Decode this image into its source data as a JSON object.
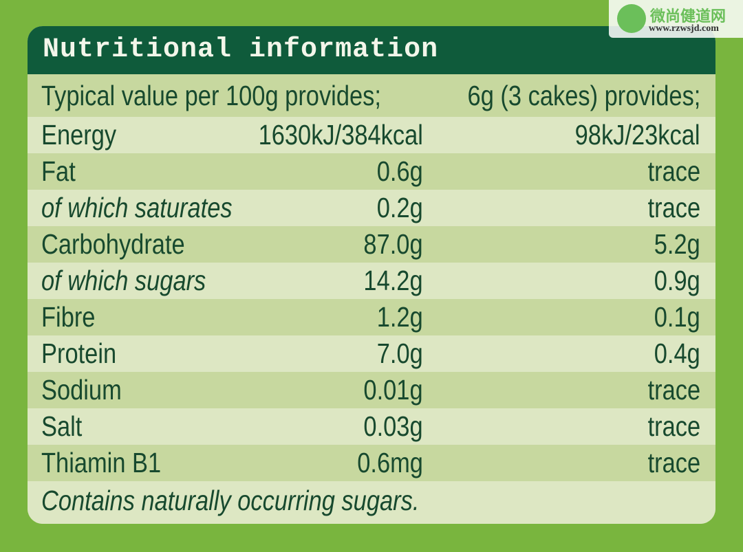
{
  "header": {
    "title": "Nutritional information"
  },
  "table": {
    "columns": [
      "Typical value per 100g provides;",
      "6g (3 cakes) provides;"
    ],
    "rows": [
      [
        "Energy",
        "1630kJ/384kcal",
        "98kJ/23kcal"
      ],
      [
        "Fat",
        "0.6g",
        "trace"
      ],
      [
        "of which saturates",
        "0.2g",
        "trace"
      ],
      [
        "Carbohydrate",
        "87.0g",
        "5.2g"
      ],
      [
        "of which sugars",
        "14.2g",
        "0.9g"
      ],
      [
        "Fibre",
        "1.2g",
        "0.1g"
      ],
      [
        "Protein",
        "7.0g",
        "0.4g"
      ],
      [
        "Sodium",
        "0.01g",
        "trace"
      ],
      [
        "Salt",
        "0.03g",
        "trace"
      ],
      [
        "Thiamin B1",
        "0.6mg",
        "trace"
      ]
    ],
    "note": "Contains naturally occurring sugars."
  },
  "watermark": {
    "name": "微尚健道网",
    "url": "www.rzwsjd.com"
  }
}
